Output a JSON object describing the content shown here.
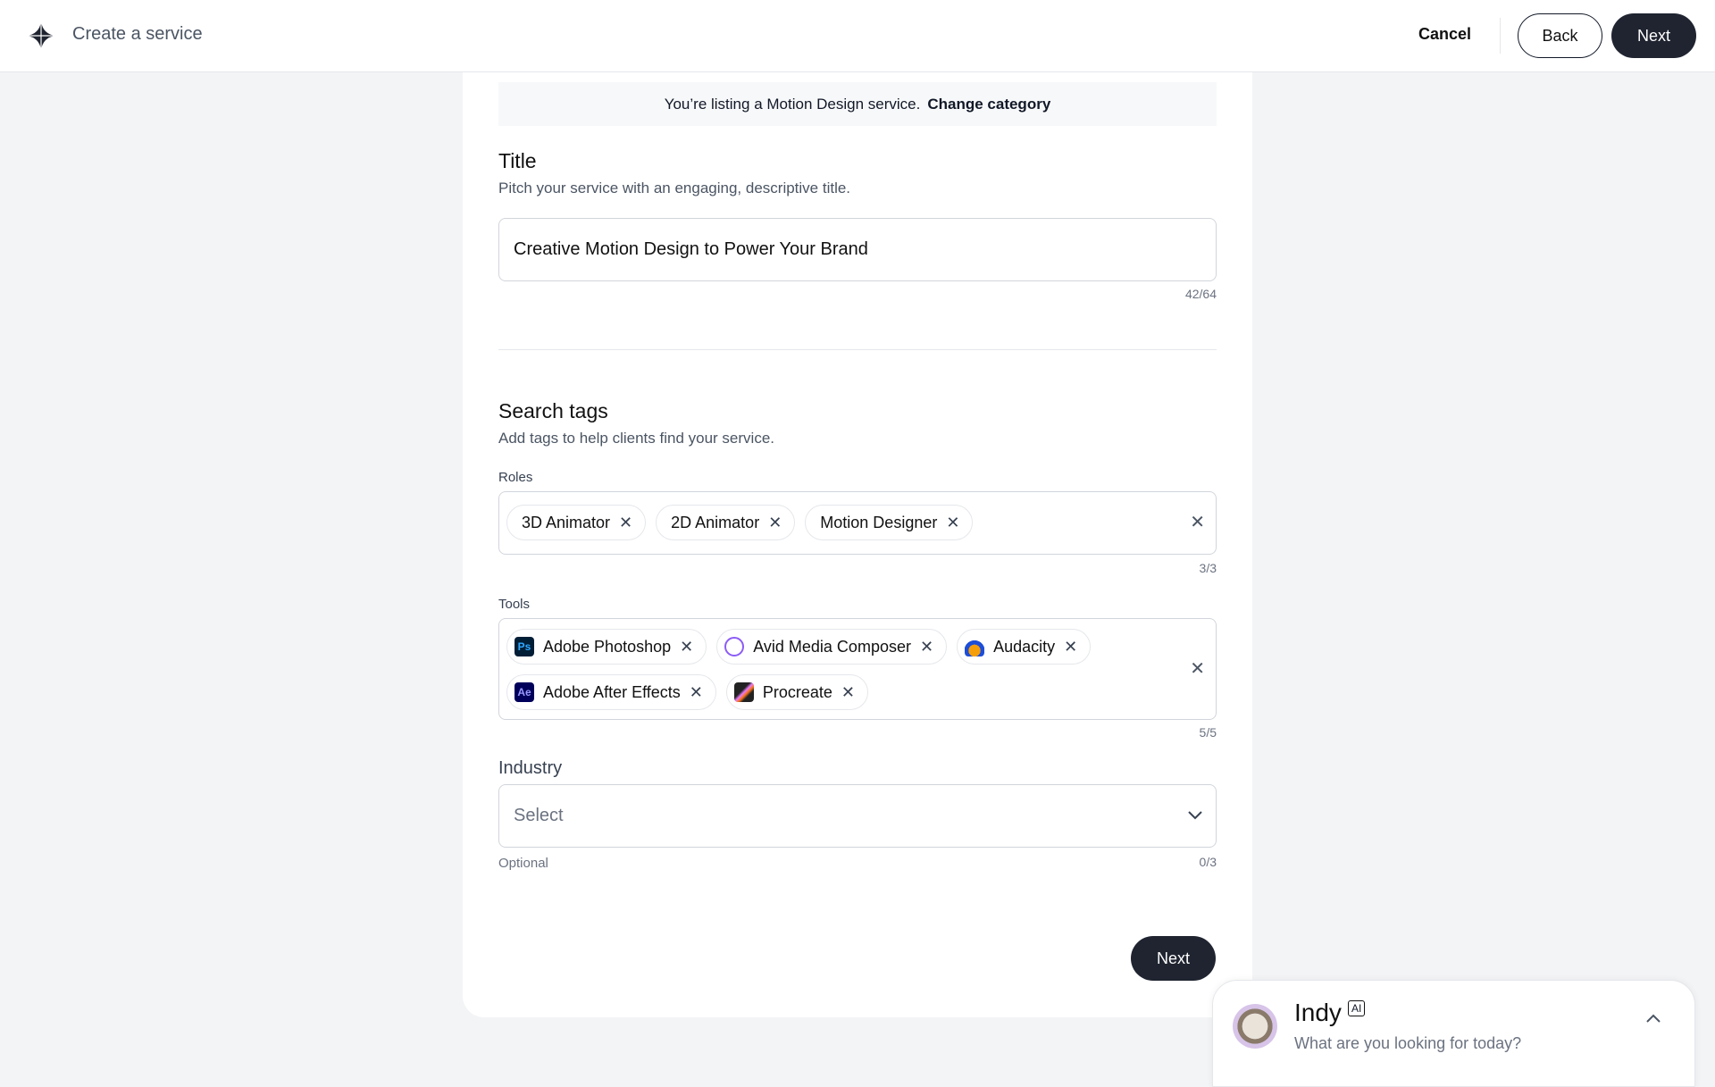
{
  "header": {
    "title": "Create a service",
    "cancel": "Cancel",
    "back": "Back",
    "next": "Next",
    "logo_icon": "four-point-star-icon"
  },
  "banner": {
    "text": "You’re listing a Motion Design service.",
    "link": "Change category"
  },
  "title_section": {
    "heading": "Title",
    "description": "Pitch your service with an engaging, descriptive title.",
    "value": "Creative Motion Design to Power Your Brand",
    "counter": "42/64"
  },
  "tags_section": {
    "heading": "Search tags",
    "description": "Add tags to help clients find your service.",
    "roles": {
      "label": "Roles",
      "items": [
        "3D Animator",
        "2D Animator",
        "Motion Designer"
      ],
      "counter": "3/3"
    },
    "tools": {
      "label": "Tools",
      "items": [
        {
          "label": "Adobe Photoshop",
          "icon": "Ps",
          "color": "#001e36",
          "fg": "#31a8ff"
        },
        {
          "label": "Avid Media Composer",
          "icon": "avid-icon",
          "color": "#ffffff",
          "fg": "#8b5cf6"
        },
        {
          "label": "Audacity",
          "icon": "audacity-icon",
          "color": "#ffffff",
          "fg": "#f59e0b"
        },
        {
          "label": "Adobe After Effects",
          "icon": "Ae",
          "color": "#00005b",
          "fg": "#9999ff"
        },
        {
          "label": "Procreate",
          "icon": "procreate-icon",
          "color": "#222222",
          "fg": "#e879f9"
        }
      ],
      "counter": "5/5"
    }
  },
  "industry": {
    "label": "Industry",
    "placeholder": "Select",
    "hint": "Optional",
    "counter": "0/3"
  },
  "footer": {
    "next": "Next"
  },
  "assistant": {
    "name": "Indy",
    "badge": "AI",
    "prompt": "What are you looking for today?"
  }
}
